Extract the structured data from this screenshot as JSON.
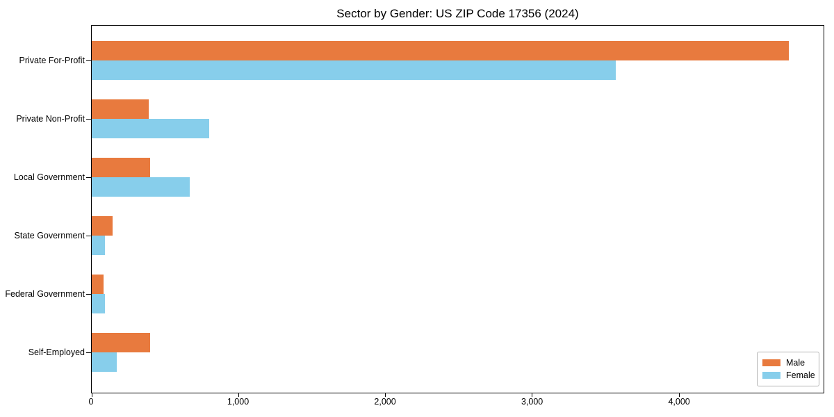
{
  "chart_data": {
    "type": "bar",
    "orientation": "horizontal",
    "title": "Sector by Gender: US ZIP Code 17356 (2024)",
    "categories": [
      "Private For-Profit",
      "Private Non-Profit",
      "Local Government",
      "State Government",
      "Federal Government",
      "Self-Employed"
    ],
    "series": [
      {
        "name": "Male",
        "color": "#e87a3e",
        "values": [
          4750,
          390,
          400,
          140,
          80,
          400
        ]
      },
      {
        "name": "Female",
        "color": "#87ceeb",
        "values": [
          3570,
          800,
          670,
          90,
          90,
          170
        ]
      }
    ],
    "xlim": [
      0,
      4987.5
    ],
    "xticks": [
      0,
      1000,
      2000,
      3000,
      4000
    ],
    "xtick_labels": [
      "0",
      "1,000",
      "2,000",
      "3,000",
      "4,000"
    ],
    "xlabel": "",
    "ylabel": "",
    "grid": false,
    "legend": {
      "position": "lower right"
    },
    "axis_color": "#000000",
    "background_color": "#ffffff"
  }
}
